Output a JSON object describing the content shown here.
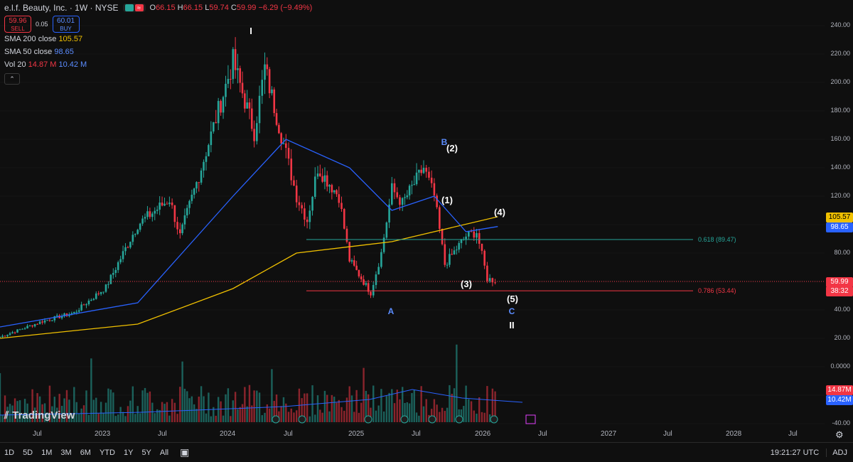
{
  "header": {
    "symbol_title": "e.l.f. Beauty, Inc. · 1W · NYSE",
    "ohlc": [
      {
        "k": "O",
        "v": "66.15"
      },
      {
        "k": "H",
        "v": "66.15"
      },
      {
        "k": "L",
        "v": "59.74"
      },
      {
        "k": "C",
        "v": "59.99"
      },
      {
        "k": "",
        "v": "−6.29 (−9.49%)"
      }
    ],
    "sell_price": "59.96",
    "sell_label": "SELL",
    "spread": "0.05",
    "buy_price": "60.01",
    "buy_label": "BUY"
  },
  "indicators": [
    {
      "name": "SMA 200 close",
      "value": "105.57",
      "color": "#f0c000"
    },
    {
      "name": "SMA 50 close",
      "value": "98.65",
      "color": "#2962ff"
    },
    {
      "name": "Vol 20",
      "value": "14.87 M",
      "value2": "10.42 M",
      "color": "#f23645",
      "color2": "#2962ff"
    }
  ],
  "price_axis": {
    "ticks": [
      "240.00",
      "220.00",
      "200.00",
      "180.00",
      "160.00",
      "140.00",
      "120.00",
      "100.00",
      "80.00",
      "60.00",
      "40.00",
      "20.00",
      "0.0000",
      "-20.00",
      "-40.00"
    ]
  },
  "price_labels": {
    "sma200": "105.57",
    "sma50": "98.65",
    "last": "59.99",
    "countdown": "38:32",
    "vol": "14.87M",
    "vol_avg": "10.42M"
  },
  "time_axis": {
    "labels": [
      "Jul",
      "2023",
      "Jul",
      "2024",
      "Jul",
      "2025",
      "Jul",
      "2026",
      "Jul",
      "2027",
      "Jul",
      "2028",
      "Jul"
    ]
  },
  "fib": [
    {
      "label": "0.618 (89.47)",
      "value": 89.47,
      "color": "#26a69a"
    },
    {
      "label": "0.786 (53.44)",
      "value": 53.44,
      "color": "#f23645"
    }
  ],
  "wave_labels": {
    "I": "I",
    "II": "II",
    "A": "A",
    "B": "B",
    "C": "C",
    "w1": "(1)",
    "w2": "(2)",
    "w3": "(3)",
    "w4": "(4)",
    "w5": "(5)"
  },
  "bottom_bar": {
    "timeframes": [
      "1D",
      "5D",
      "1M",
      "3M",
      "6M",
      "YTD",
      "1Y",
      "5Y",
      "All"
    ],
    "clock": "19:21:27 UTC",
    "adj": "ADJ"
  },
  "brand": "TradingView",
  "colors": {
    "up": "#26a69a",
    "down": "#f23645",
    "sma200": "#f0c000",
    "sma50": "#2962ff",
    "bg": "#0f0f0f"
  },
  "chart_data": {
    "type": "candlestick",
    "symbol": "ELF",
    "interval": "1W",
    "ylim": [
      -40,
      240
    ],
    "close_path": [
      {
        "x": "2022-05",
        "y": 21
      },
      {
        "x": "2022-09",
        "y": 32
      },
      {
        "x": "2022-12",
        "y": 38
      },
      {
        "x": "2023-03",
        "y": 56
      },
      {
        "x": "2023-06",
        "y": 100
      },
      {
        "x": "2023-09",
        "y": 118
      },
      {
        "x": "2023-10",
        "y": 92
      },
      {
        "x": "2023-12",
        "y": 140
      },
      {
        "x": "2024-03",
        "y": 215
      },
      {
        "x": "2024-05",
        "y": 165
      },
      {
        "x": "2024-06",
        "y": 210
      },
      {
        "x": "2024-08",
        "y": 150
      },
      {
        "x": "2024-09",
        "y": 120
      },
      {
        "x": "2024-10",
        "y": 103
      },
      {
        "x": "2024-11",
        "y": 140
      },
      {
        "x": "2025-01",
        "y": 120
      },
      {
        "x": "2025-02",
        "y": 75
      },
      {
        "x": "2025-04",
        "y": 52
      },
      {
        "x": "2025-05",
        "y": 80
      },
      {
        "x": "2025-06",
        "y": 125
      },
      {
        "x": "2025-07",
        "y": 115
      },
      {
        "x": "2025-09",
        "y": 140
      },
      {
        "x": "2025-10",
        "y": 120
      },
      {
        "x": "2025-11",
        "y": 72
      },
      {
        "x": "2026-01",
        "y": 92
      },
      {
        "x": "2026-02",
        "y": 95
      },
      {
        "x": "2026-03",
        "y": 62
      },
      {
        "x": "2026-04",
        "y": 60
      }
    ],
    "sma200_path": [
      {
        "x": "2022-05",
        "y": 20
      },
      {
        "x": "2023-06",
        "y": 30
      },
      {
        "x": "2024-03",
        "y": 55
      },
      {
        "x": "2024-09",
        "y": 80
      },
      {
        "x": "2025-06",
        "y": 88
      },
      {
        "x": "2026-04",
        "y": 105.57
      }
    ],
    "sma50_path": [
      {
        "x": "2022-05",
        "y": 28
      },
      {
        "x": "2023-06",
        "y": 45
      },
      {
        "x": "2024-03",
        "y": 120
      },
      {
        "x": "2024-08",
        "y": 160
      },
      {
        "x": "2025-02",
        "y": 140
      },
      {
        "x": "2025-06",
        "y": 110
      },
      {
        "x": "2025-10",
        "y": 120
      },
      {
        "x": "2026-01",
        "y": 95
      },
      {
        "x": "2026-04",
        "y": 98.65
      }
    ]
  }
}
